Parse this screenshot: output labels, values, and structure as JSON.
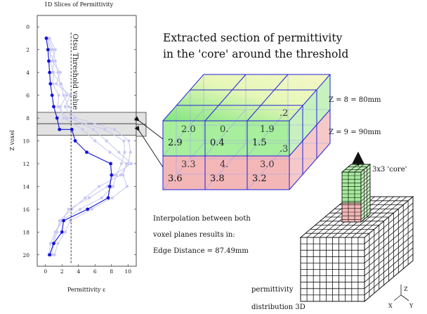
{
  "chart": {
    "title": "1D Slices of Permittivity",
    "xlabel": "Permittivity ε",
    "ylabel": "Z voxel",
    "threshold_label": "Otsu Threshold value",
    "x_ticks": [
      "0",
      "2",
      "4",
      "6",
      "8",
      "10"
    ],
    "y_ticks": [
      "0",
      "2",
      "4",
      "6",
      "8",
      "10",
      "12",
      "14",
      "16",
      "18",
      "20"
    ]
  },
  "chart_data": {
    "type": "line",
    "title": "1D Slices of Permittivity",
    "xlabel": "Permittivity ε",
    "ylabel": "Z voxel",
    "xlim": [
      -1,
      11
    ],
    "ylim": [
      21,
      -1
    ],
    "y_inverted": true,
    "threshold_x": 3.1,
    "highlight_rows": [
      [
        7.5,
        8.5
      ],
      [
        8.5,
        9.5
      ]
    ],
    "series": [
      {
        "color": "#1010e0",
        "highlighted": true,
        "x": [
          0.1,
          0.3,
          0.4,
          0.5,
          0.6,
          0.8,
          1.0,
          1.4,
          1.7,
          3.2,
          3.6,
          5.0,
          7.9,
          8.0,
          7.8,
          7.6,
          5.1,
          2.2,
          2.0,
          1.0,
          0.5
        ],
        "y": [
          1,
          2,
          3,
          4,
          5,
          6,
          7,
          8,
          9,
          9,
          10,
          11,
          12,
          13,
          14,
          15,
          16,
          17,
          18,
          19,
          20
        ]
      },
      {
        "color": "#c8c8f2",
        "x": [
          0.2,
          0.7,
          0.5,
          1.0,
          0.9,
          1.6,
          1.5,
          2.6,
          7.2,
          9.5,
          9.6,
          9.2,
          8.6,
          8.2,
          6.8,
          4.2,
          1.9,
          1.2,
          0.9,
          0.6
        ],
        "y": [
          1,
          2,
          3,
          4,
          5,
          6,
          7,
          8,
          9,
          10,
          11,
          12,
          13,
          14,
          15,
          16,
          17,
          18,
          19,
          20
        ]
      },
      {
        "color": "#c8c8f2",
        "x": [
          0.4,
          0.9,
          1.2,
          1.5,
          1.8,
          2.2,
          2.8,
          3.6,
          8.4,
          10.1,
          10.3,
          10.0,
          9.1,
          6.5,
          4.8,
          3.2,
          1.7,
          1.4,
          1.0,
          0.8
        ],
        "y": [
          1,
          2,
          3,
          4,
          5,
          6,
          7,
          8,
          9,
          10,
          11,
          12,
          13,
          14,
          15,
          16,
          17,
          18,
          19,
          20
        ]
      },
      {
        "color": "#c8c8f2",
        "x": [
          0.3,
          0.4,
          1.0,
          0.8,
          1.9,
          2.6,
          1.8,
          2.2,
          4.5,
          6.0,
          7.8,
          9.8,
          9.4,
          9.9,
          8.1,
          5.6,
          3.0,
          2.4,
          1.5,
          1.1
        ],
        "y": [
          1,
          2,
          3,
          4,
          5,
          6,
          7,
          8,
          9,
          10,
          11,
          12,
          13,
          14,
          15,
          16,
          17,
          18,
          19,
          20
        ]
      },
      {
        "color": "#c8c8f2",
        "x": [
          0.5,
          1.2,
          0.8,
          1.8,
          1.3,
          3.0,
          2.4,
          3.1,
          5.8,
          7.4,
          8.9,
          10.4,
          8.3,
          7.5,
          5.3,
          2.8,
          2.1,
          1.2,
          0.6,
          0.4
        ],
        "y": [
          1,
          2,
          3,
          4,
          5,
          6,
          7,
          8,
          9,
          10,
          11,
          12,
          13,
          14,
          15,
          16,
          17,
          18,
          19,
          20
        ]
      }
    ]
  },
  "section": {
    "title_line1": "Extracted section of permittivity",
    "title_line2": "in the 'core' around the threshold",
    "front_values": [
      "2.9",
      "0.4",
      "1.5",
      "3.6",
      "3.8",
      "3.2"
    ],
    "ghost_values": [
      "2.0",
      "0.",
      "1.9",
      "3.3",
      "4.",
      "3.0"
    ],
    "side_values": [
      ".2",
      ".3"
    ],
    "z8_label": "Z = 8 = 80mm",
    "z9_label": "Z = 9 = 90mm"
  },
  "interpolation": {
    "line1": "Interpolation between both",
    "line2": "voxel planes results in:",
    "line3": "Edge Distance = 87.49mm"
  },
  "volume": {
    "core_label": "3x3 'core'",
    "caption_line1": "permittivity",
    "caption_line2": "distribution 3D",
    "axis_x": "X",
    "axis_y": "Y",
    "axis_z": "Z"
  },
  "colors": {
    "green": "#9fee9f",
    "red": "#f4b9b9",
    "blue_line": "#1010e0",
    "light_line": "#c8c8f2"
  }
}
